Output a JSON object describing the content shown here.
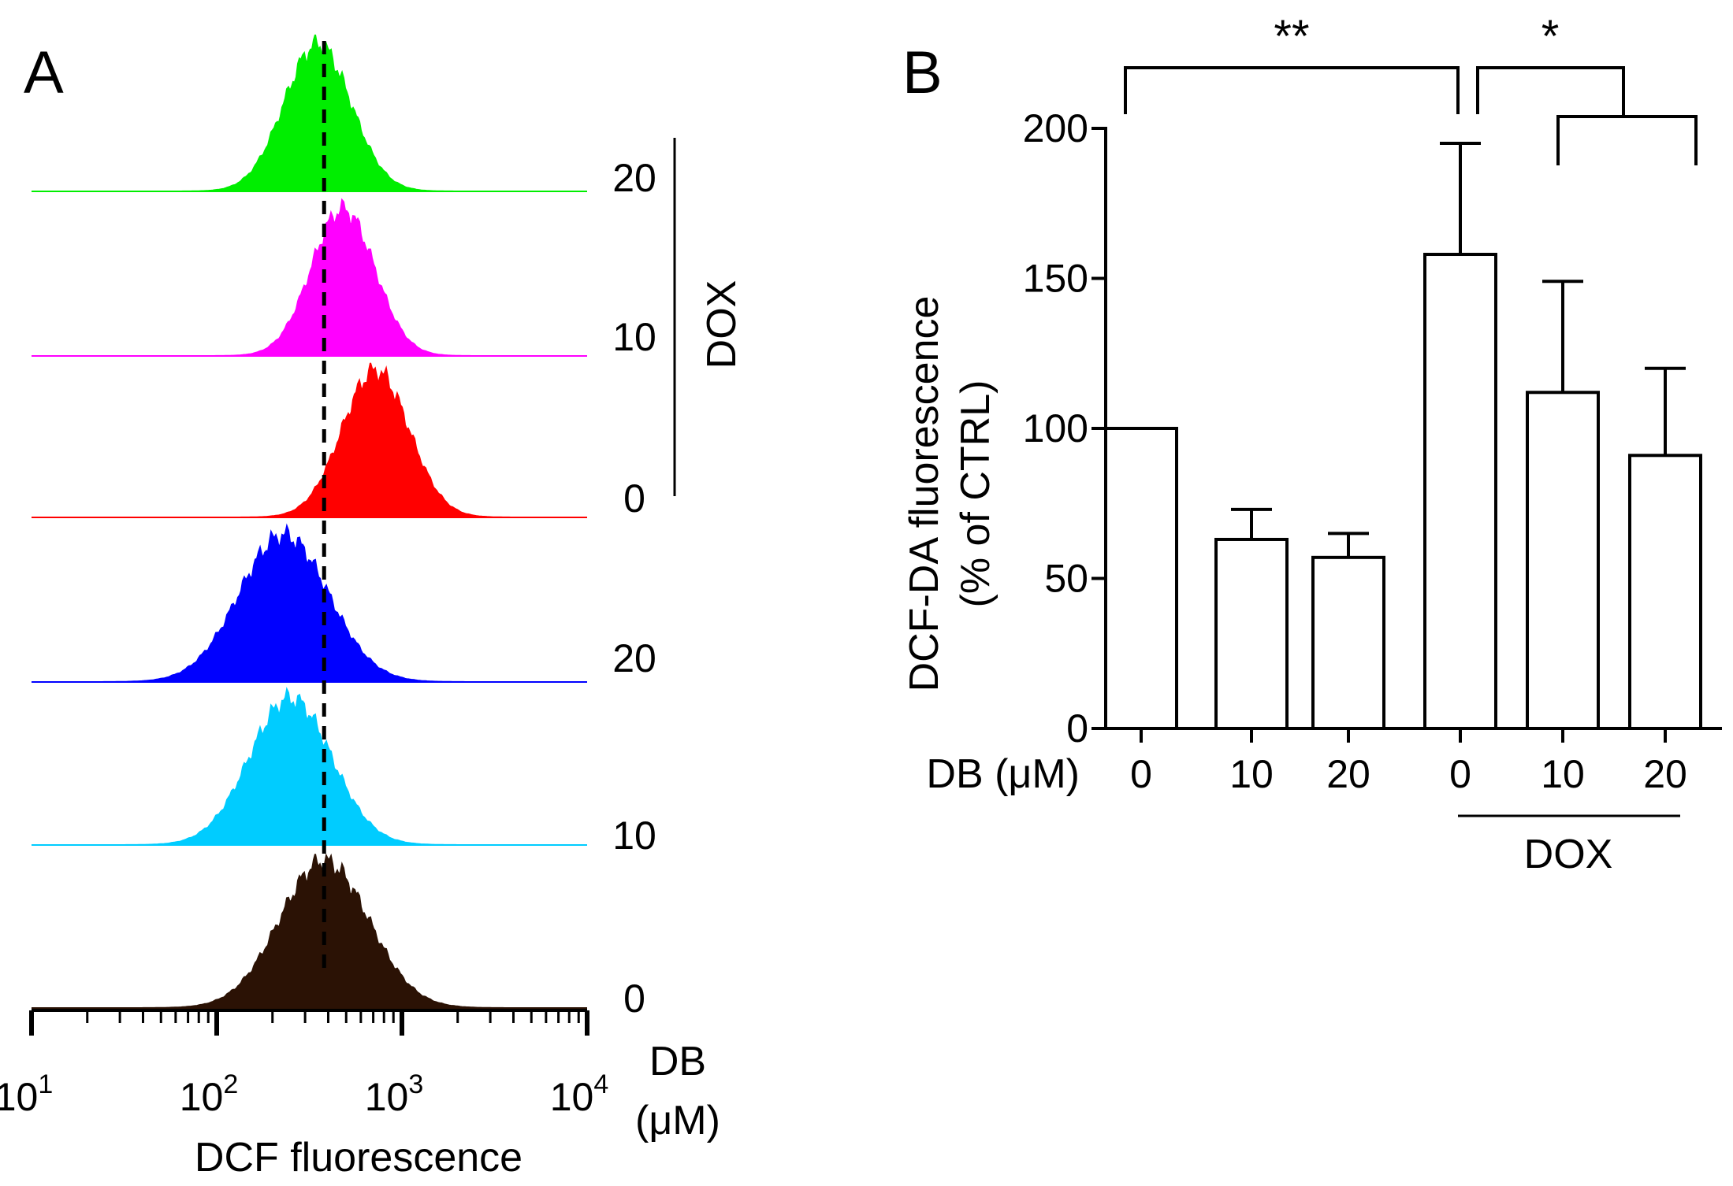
{
  "chart_data": [
    {
      "panel": "A",
      "type": "histogram",
      "xlabel": "DCF fluorescence",
      "xscale": "log",
      "xlim": [
        10,
        10000
      ],
      "x_ticks": [
        {
          "base": "10",
          "exp": "1"
        },
        {
          "base": "10",
          "exp": "2"
        },
        {
          "base": "10",
          "exp": "3"
        },
        {
          "base": "10",
          "exp": "4"
        }
      ],
      "reference_line_x": 380,
      "row_label_title": [
        "DB",
        "(μM)"
      ],
      "group_label": "DOX",
      "series": [
        {
          "name": "20",
          "group": "DOX",
          "color": "#00ee00",
          "peak_x": 350,
          "spread": 0.18
        },
        {
          "name": "10",
          "group": "DOX",
          "color": "#ff00ff",
          "peak_x": 480,
          "spread": 0.17
        },
        {
          "name": "0",
          "group": "DOX",
          "color": "#ff0000",
          "peak_x": 720,
          "spread": 0.18
        },
        {
          "name": "20",
          "group": "",
          "color": "#0000ff",
          "peak_x": 230,
          "spread": 0.24
        },
        {
          "name": "10",
          "group": "",
          "color": "#00ccff",
          "peak_x": 250,
          "spread": 0.22
        },
        {
          "name": "0",
          "group": "",
          "color": "#2b1205",
          "peak_x": 380,
          "spread": 0.24
        }
      ]
    },
    {
      "panel": "B",
      "type": "bar",
      "ylabel": "DCF-DA fluorescence",
      "ylabel2": "(% of CTRL)",
      "ylim": [
        0,
        200
      ],
      "yticks": [
        "0",
        "50",
        "100",
        "150",
        "200"
      ],
      "xlabel": "DB (μM)",
      "categories": [
        "0",
        "10",
        "20",
        "0",
        "10",
        "20"
      ],
      "values": [
        100,
        63,
        57,
        158,
        112,
        91
      ],
      "errors": [
        0,
        10,
        8,
        37,
        37,
        29
      ],
      "group_label": "DOX",
      "significance": [
        {
          "label": "**",
          "from": [
            0
          ],
          "to": [
            3
          ]
        },
        {
          "label": "*",
          "from": [
            3
          ],
          "to": [
            4,
            5
          ]
        }
      ]
    }
  ]
}
